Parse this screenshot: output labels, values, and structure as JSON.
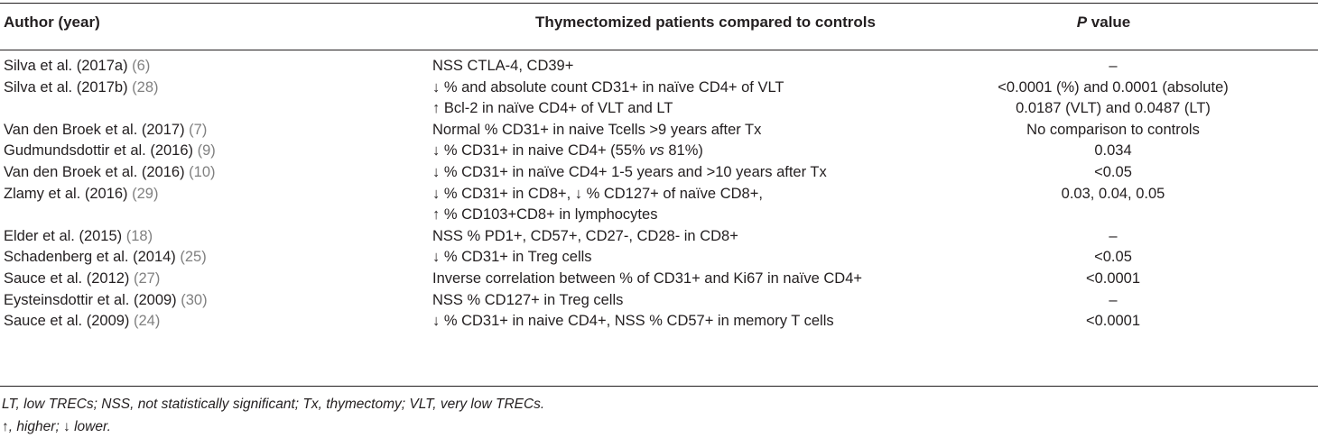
{
  "table": {
    "headers": {
      "author": "Author (year)",
      "comparison": "Thymectomized patients compared to controls",
      "p_italic": "P",
      "p_rest": " value"
    },
    "rows": [
      {
        "author": "Silva et al. (2017a) ",
        "ref": "(6)",
        "comparison": "NSS CTLA-4, CD39+",
        "p": "–"
      },
      {
        "author": "Silva et al. (2017b) ",
        "ref": "(28)",
        "comparison": "↓ % and absolute count CD31+ in naïve CD4+ of VLT",
        "p": "<0.0001 (%) and 0.0001 (absolute)"
      },
      {
        "author": "",
        "ref": "",
        "comparison": "↑ Bcl-2 in naïve CD4+ of VLT and LT",
        "p": "0.0187 (VLT) and 0.0487 (LT)"
      },
      {
        "author": "Van den Broek et al. (2017) ",
        "ref": "(7)",
        "comparison": "Normal % CD31+ in naive Tcells >9 years after Tx",
        "p": "No comparison to controls"
      },
      {
        "author": "Gudmundsdottir et al. (2016) ",
        "ref": "(9)",
        "comparison_pre": "↓ % CD31+ in naive CD4+ (55% ",
        "comparison_vs": "vs",
        "comparison_post": " 81%)",
        "p": "0.034"
      },
      {
        "author": "Van den Broek et al. (2016) ",
        "ref": "(10)",
        "comparison": "↓ % CD31+ in naïve CD4+ 1-5 years and >10 years after Tx",
        "p": "<0.05"
      },
      {
        "author": "Zlamy et al. (2016) ",
        "ref": "(29)",
        "comparison": "↓ % CD31+ in CD8+, ↓ % CD127+ of naïve CD8+,",
        "p": "0.03, 0.04, 0.05"
      },
      {
        "author": "",
        "ref": "",
        "comparison": "↑ % CD103+CD8+ in lymphocytes",
        "p": ""
      },
      {
        "author": "Elder et al. (2015) ",
        "ref": "(18)",
        "comparison": "NSS % PD1+, CD57+, CD27-, CD28- in CD8+",
        "p": "–"
      },
      {
        "author": "Schadenberg et al. (2014) ",
        "ref": "(25)",
        "comparison": "↓ % CD31+ in Treg cells",
        "p": "<0.05"
      },
      {
        "author": "Sauce et al. (2012) ",
        "ref": "(27)",
        "comparison": "Inverse correlation between % of CD31+ and Ki67 in naïve CD4+",
        "p": "<0.0001"
      },
      {
        "author": "Eysteinsdottir et al. (2009) ",
        "ref": "(30)",
        "comparison": "NSS % CD127+ in Treg cells",
        "p": "–"
      },
      {
        "author": "Sauce et al. (2009) ",
        "ref": "(24)",
        "comparison": "↓ % CD31+ in naive CD4+, NSS % CD57+ in memory T cells",
        "p": "<0.0001"
      }
    ],
    "footnotes": [
      "LT, low TRECs; NSS, not statistically significant; Tx, thymectomy; VLT, very low TRECs.",
      "↑, higher; ↓ lower."
    ]
  }
}
